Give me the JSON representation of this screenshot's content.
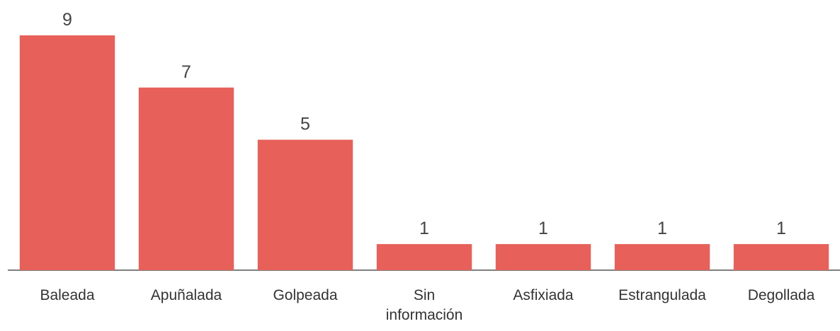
{
  "chart_data": {
    "type": "bar",
    "categories": [
      "Baleada",
      "Apuñalada",
      "Golpeada",
      "Sin información",
      "Asfixiada",
      "Estrangulada",
      "Degollada"
    ],
    "values": [
      9,
      7,
      5,
      1,
      1,
      1,
      1
    ],
    "color": "#e8605a",
    "ylim": [
      0,
      9
    ]
  }
}
